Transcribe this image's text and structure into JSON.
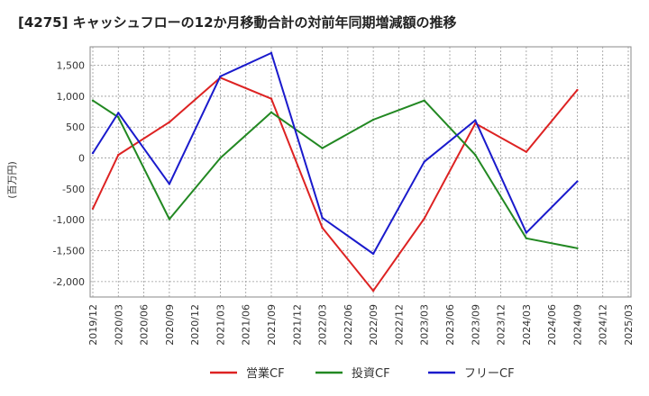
{
  "chart_data": {
    "type": "line",
    "title": "[4275]  キャッシュフローの12か月移動合計の対前年同期増減額の推移",
    "ylabel": "(百万円)",
    "xlabel": "",
    "ylim": [
      -2250,
      1800
    ],
    "yticks": [
      1500,
      1000,
      500,
      0,
      -500,
      -1000,
      -1500,
      -2000
    ],
    "ytick_labels": [
      "1,500",
      "1,000",
      "500",
      "0",
      "-500",
      "-1,000",
      "-1,500",
      "-2,000"
    ],
    "categories": [
      "2019/12",
      "2020/03",
      "2020/06",
      "2020/09",
      "2020/12",
      "2021/03",
      "2021/06",
      "2021/09",
      "2021/12",
      "2022/03",
      "2022/06",
      "2022/09",
      "2022/12",
      "2023/03",
      "2023/06",
      "2023/09",
      "2023/12",
      "2024/03",
      "2024/06",
      "2024/09",
      "2024/12",
      "2025/03"
    ],
    "series": [
      {
        "name": "営業CF",
        "color": "#dd2222",
        "values": [
          -820,
          50,
          null,
          580,
          null,
          1300,
          null,
          960,
          null,
          -1130,
          null,
          -2150,
          null,
          -980,
          null,
          560,
          null,
          100,
          null,
          1100,
          null,
          null
        ]
      },
      {
        "name": "投資CF",
        "color": "#228822",
        "values": [
          930,
          660,
          null,
          -990,
          null,
          0,
          null,
          740,
          null,
          160,
          null,
          620,
          null,
          930,
          null,
          50,
          null,
          -1300,
          null,
          -1460,
          null,
          null
        ]
      },
      {
        "name": "フリーCF",
        "color": "#1a1acc",
        "values": [
          80,
          730,
          null,
          -420,
          null,
          1320,
          null,
          1700,
          null,
          -970,
          null,
          -1550,
          null,
          -60,
          null,
          610,
          null,
          -1210,
          null,
          -380,
          null,
          null
        ]
      }
    ],
    "grid": true,
    "legend_position": "bottom-center"
  }
}
